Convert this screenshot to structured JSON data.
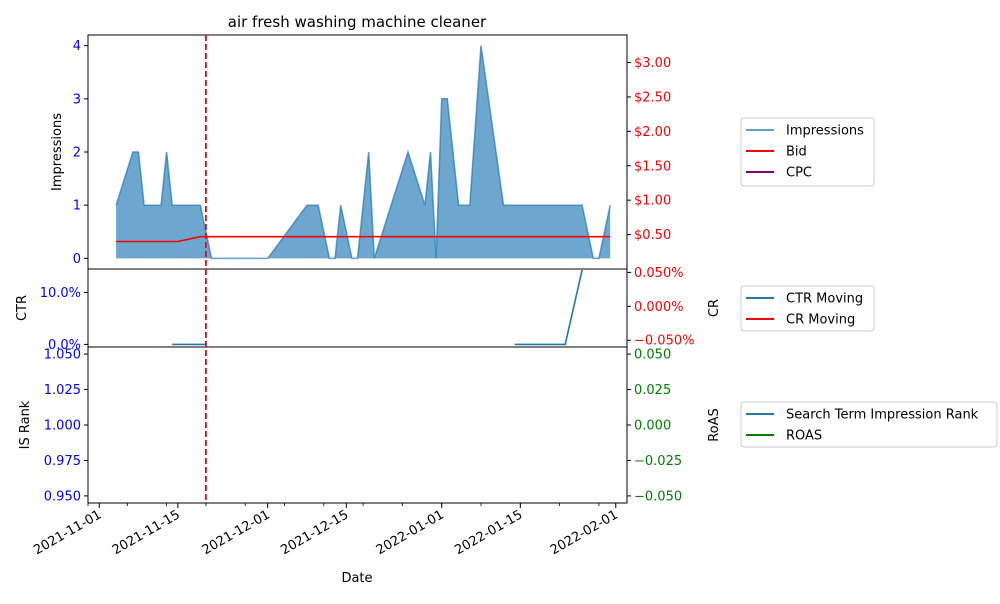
{
  "chart_data": {
    "type": "area",
    "title": "air fresh washing machine cleaner",
    "xlabel": "Date",
    "x_ticks": [
      "2021-11-01",
      "2021-11-15",
      "2021-12-01",
      "2021-12-15",
      "2022-01-01",
      "2022-01-15",
      "2022-02-01"
    ],
    "xlim": [
      "2021-10-30",
      "2022-02-03"
    ],
    "marker_date": "2021-11-20",
    "colors": {
      "impressions": "#1f77b4",
      "bid": "#ff0000",
      "cpc": "#800080",
      "ctr": "#1f77b4",
      "cr": "#ff0000",
      "rank": "#1f77b4",
      "roas": "#008000",
      "left_ticks": "#0000ff",
      "marker": "#ff0000"
    },
    "panels": [
      {
        "id": "impressions",
        "ylabel": "Impressions",
        "ylim": [
          -0.2,
          4.2
        ],
        "yticks": [
          "0",
          "1",
          "2",
          "3",
          "4"
        ],
        "ytick_values": [
          0,
          1,
          2,
          3,
          4
        ],
        "y2lim": [
          0,
          3.4
        ],
        "y2ticks": [
          "$0.50",
          "$1.00",
          "$1.50",
          "$2.00",
          "$2.50",
          "$3.00"
        ],
        "y2tick_values": [
          0.5,
          1.0,
          1.5,
          2.0,
          2.5,
          3.0
        ],
        "legend": [
          "Impressions",
          "Bid",
          "CPC"
        ],
        "series": [
          {
            "name": "Impressions",
            "kind": "area",
            "points": [
              [
                "2021-11-04",
                1
              ],
              [
                "2021-11-07",
                2
              ],
              [
                "2021-11-08",
                2
              ],
              [
                "2021-11-09",
                1
              ],
              [
                "2021-11-12",
                1
              ],
              [
                "2021-11-13",
                2
              ],
              [
                "2021-11-14",
                1
              ],
              [
                "2021-11-19",
                1
              ],
              [
                "2021-11-21",
                0
              ],
              [
                "2021-12-01",
                0
              ],
              [
                "2021-12-08",
                1
              ],
              [
                "2021-12-10",
                1
              ],
              [
                "2021-12-12",
                0
              ],
              [
                "2021-12-13",
                0
              ],
              [
                "2021-12-14",
                1
              ],
              [
                "2021-12-16",
                0
              ],
              [
                "2021-12-17",
                0
              ],
              [
                "2021-12-19",
                2
              ],
              [
                "2021-12-20",
                0
              ],
              [
                "2021-12-26",
                2
              ],
              [
                "2021-12-29",
                1
              ],
              [
                "2021-12-30",
                2
              ],
              [
                "2021-12-31",
                0
              ],
              [
                "2022-01-01",
                3
              ],
              [
                "2022-01-02",
                3
              ],
              [
                "2022-01-04",
                1
              ],
              [
                "2022-01-06",
                1
              ],
              [
                "2022-01-08",
                4
              ],
              [
                "2022-01-12",
                1
              ],
              [
                "2022-01-26",
                1
              ],
              [
                "2022-01-28",
                0
              ],
              [
                "2022-01-29",
                0
              ],
              [
                "2022-01-31",
                1
              ]
            ]
          },
          {
            "name": "Bid",
            "kind": "line",
            "axis": "right",
            "points": [
              [
                "2021-11-04",
                0.4
              ],
              [
                "2021-11-15",
                0.4
              ],
              [
                "2021-11-19",
                0.47
              ],
              [
                "2022-01-31",
                0.47
              ]
            ]
          },
          {
            "name": "CPC",
            "kind": "line",
            "axis": "right",
            "points": []
          }
        ]
      },
      {
        "id": "ctr",
        "ylabel": "CTR",
        "y2label": "CR",
        "ylim": [
          -0.005,
          0.145
        ],
        "yticks": [
          "0.0%",
          "10.0%"
        ],
        "ytick_values": [
          0.0,
          0.1
        ],
        "y2lim": [
          -0.06,
          0.055
        ],
        "y2ticks": [
          "−0.050%",
          "0.000%",
          "0.050%"
        ],
        "y2tick_values": [
          -0.05,
          0.0,
          0.05
        ],
        "legend": [
          "CTR Moving",
          "CR Moving"
        ],
        "series": [
          {
            "name": "CTR Moving",
            "kind": "line",
            "points": [
              [
                "2021-11-14",
                0.0
              ],
              [
                "2021-11-20",
                0.0
              ],
              [
                "null",
                null
              ],
              [
                "2022-01-14",
                0.0
              ],
              [
                "2022-01-23",
                0.0
              ],
              [
                "2022-01-26",
                0.143
              ]
            ]
          },
          {
            "name": "CR Moving",
            "kind": "line",
            "axis": "right",
            "points": []
          }
        ]
      },
      {
        "id": "rank",
        "ylabel": "IS Rank",
        "y2label": "RoAS",
        "ylim": [
          0.945,
          1.055
        ],
        "yticks": [
          "0.950",
          "0.975",
          "1.000",
          "1.025",
          "1.050"
        ],
        "ytick_values": [
          0.95,
          0.975,
          1.0,
          1.025,
          1.05
        ],
        "y2lim": [
          -0.055,
          0.055
        ],
        "y2ticks": [
          "−0.050",
          "−0.025",
          "0.000",
          "0.025",
          "0.050"
        ],
        "y2tick_values": [
          -0.05,
          -0.025,
          0.0,
          0.025,
          0.05
        ],
        "legend": [
          "Search Term Impression Rank",
          "ROAS"
        ],
        "series": [
          {
            "name": "Search Term Impression Rank",
            "kind": "line",
            "points": []
          },
          {
            "name": "ROAS",
            "kind": "line",
            "axis": "right",
            "points": []
          }
        ]
      }
    ]
  }
}
